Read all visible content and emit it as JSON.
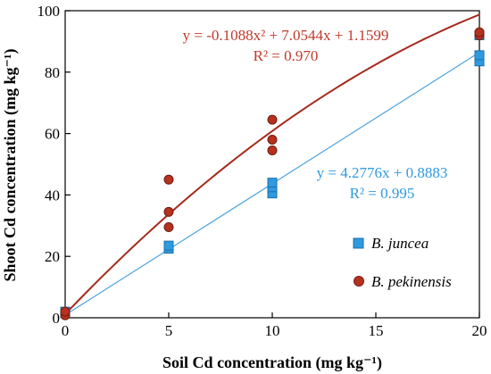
{
  "chart_data": {
    "type": "scatter",
    "xlabel": "Soil Cd concentration (mg kg⁻¹)",
    "ylabel": "Shoot Cd concentration (mg kg⁻¹)",
    "xlim": [
      0,
      20
    ],
    "ylim": [
      0,
      100
    ],
    "xticks": [
      0,
      5,
      10,
      15,
      20
    ],
    "yticks": [
      0,
      20,
      40,
      60,
      80,
      100
    ],
    "grid": false,
    "legend_position": "right",
    "series": [
      {
        "name": "B. juncea",
        "marker": "square",
        "color": "#2e9ae0",
        "points": [
          [
            0,
            1.5
          ],
          [
            0,
            2.0
          ],
          [
            5,
            22.5
          ],
          [
            5,
            23.5
          ],
          [
            10,
            40.5
          ],
          [
            10,
            42.5
          ],
          [
            10,
            44.0
          ],
          [
            20,
            83.5
          ],
          [
            20,
            85.5
          ],
          [
            20,
            92.0
          ]
        ],
        "fit": {
          "type": "linear",
          "coefficients": [
            4.2776,
            0.8883
          ],
          "equation": "y = 4.2776x + 0.8883",
          "r2": "R² = 0.995"
        }
      },
      {
        "name": "B. pekinensis",
        "marker": "circle",
        "color": "#c0392b",
        "points": [
          [
            0,
            0.8
          ],
          [
            0,
            2.0
          ],
          [
            5,
            29.5
          ],
          [
            5,
            34.5
          ],
          [
            5,
            45.0
          ],
          [
            10,
            54.5
          ],
          [
            10,
            58.0
          ],
          [
            10,
            64.5
          ],
          [
            20,
            92.0
          ],
          [
            20,
            93.0
          ]
        ],
        "fit": {
          "type": "quadratic",
          "coefficients": [
            -0.1088,
            7.0544,
            1.1599
          ],
          "equation": "y = -0.1088x² + 7.0544x + 1.1599",
          "r2": "R² = 0.970"
        }
      }
    ]
  },
  "colors": {
    "juncea_fill": "#2e9ae0",
    "juncea_line": "#4aa3df",
    "pekinensis_fill": "#b7311f",
    "pekinensis_line": "#a52a1a"
  }
}
